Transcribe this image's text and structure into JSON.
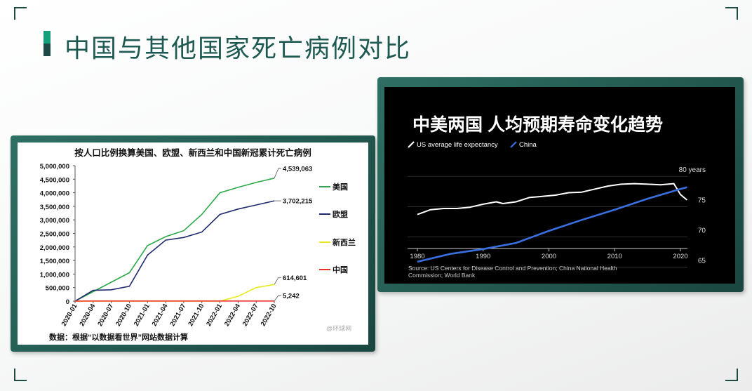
{
  "page": {
    "title": "中国与其他国家死亡病例对比"
  },
  "chart_data": [
    {
      "type": "line",
      "title": "按人口比例换算美国、欧盟、新西兰和中国新冠累计死亡病例",
      "source": "数据：根据“以数据看世界”网站数据计算",
      "watermark": "@环球网",
      "x": [
        "2020-01",
        "2020-04",
        "2020-07",
        "2020-10",
        "2021-01",
        "2021-04",
        "2021-07",
        "2021-10",
        "2022-01",
        "2022-04",
        "2022-07",
        "2022-10"
      ],
      "ylim": [
        0,
        5000000
      ],
      "yticks": [
        "5,000,000",
        "4,500,000",
        "4,000,000",
        "3,500,000",
        "3,000,000",
        "2,500,000",
        "2,000,000",
        "1,500,000",
        "1,000,000",
        "500,000",
        "0"
      ],
      "legend_position": "right",
      "series": [
        {
          "name": "美国",
          "color": "#2ca84a",
          "end_label": "4,539,063",
          "values": [
            0,
            350000,
            700000,
            1050000,
            2050000,
            2380000,
            2600000,
            3200000,
            4000000,
            4200000,
            4380000,
            4539063
          ]
        },
        {
          "name": "欧盟",
          "color": "#1f2a6e",
          "end_label": "3,702,215",
          "values": [
            0,
            400000,
            420000,
            550000,
            1700000,
            2250000,
            2350000,
            2550000,
            3200000,
            3400000,
            3550000,
            3702215
          ]
        },
        {
          "name": "新西兰",
          "color": "#e8ea1a",
          "end_label": "614,601",
          "values": [
            0,
            0,
            0,
            0,
            0,
            0,
            0,
            0,
            0,
            180000,
            500000,
            614601
          ]
        },
        {
          "name": "中国",
          "color": "#e8302a",
          "end_label": "5,242",
          "values": [
            0,
            4600,
            4700,
            4700,
            4800,
            4800,
            4900,
            4900,
            5000,
            5100,
            5200,
            5242
          ]
        }
      ]
    },
    {
      "type": "line",
      "title": "中美两国 人均预期寿命变化趋势",
      "source": "Source: US Centers for Disease Control and Prevention; China National Health Commission; World Bank",
      "xticks": [
        1980,
        1990,
        2000,
        2010,
        2020
      ],
      "yticks": [
        "80 years",
        "75",
        "70",
        "65"
      ],
      "ylim": [
        64,
        81
      ],
      "legend_position": "top-left",
      "grid": true,
      "series": [
        {
          "name": "US average life expectancy",
          "color": "#ffffff",
          "x": [
            1980,
            1982,
            1984,
            1986,
            1988,
            1990,
            1992,
            1993,
            1995,
            1997,
            1999,
            2001,
            2003,
            2005,
            2007,
            2009,
            2011,
            2013,
            2015,
            2017,
            2019,
            2020,
            2021
          ],
          "values": [
            73.7,
            74.5,
            74.7,
            74.7,
            74.9,
            75.4,
            75.8,
            75.5,
            75.8,
            76.5,
            76.7,
            76.9,
            77.3,
            77.4,
            77.9,
            78.4,
            78.7,
            78.8,
            78.7,
            78.6,
            78.8,
            77.0,
            76.1
          ]
        },
        {
          "name": "China",
          "color": "#3a6fe0",
          "x": [
            1980,
            1985,
            1990,
            1995,
            2000,
            2005,
            2010,
            2015,
            2020,
            2021
          ],
          "values": [
            65.9,
            67.2,
            68.0,
            69.0,
            71.0,
            72.8,
            74.5,
            76.3,
            77.9,
            78.2
          ]
        }
      ]
    }
  ]
}
